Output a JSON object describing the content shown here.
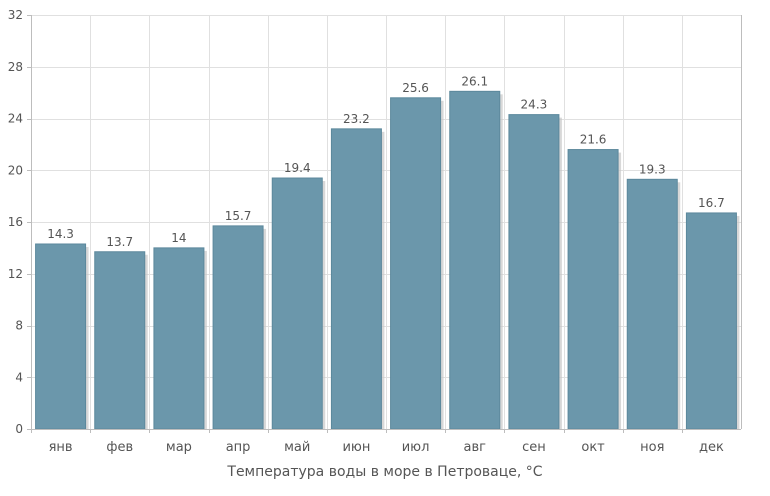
{
  "chart_data": {
    "type": "bar",
    "categories": [
      "янв",
      "фев",
      "мар",
      "апр",
      "май",
      "июн",
      "июл",
      "авг",
      "сен",
      "окт",
      "ноя",
      "дек"
    ],
    "values": [
      14.3,
      13.7,
      14,
      15.7,
      19.4,
      23.2,
      25.6,
      26.1,
      24.3,
      21.6,
      19.3,
      16.7
    ],
    "value_labels": [
      "14.3",
      "13.7",
      "14",
      "15.7",
      "19.4",
      "23.2",
      "25.6",
      "26.1",
      "24.3",
      "21.6",
      "19.3",
      "16.7"
    ],
    "xlabel": "Температура воды в море в Петроваце, °С",
    "ylabel": "",
    "ylim": [
      0,
      32
    ],
    "yticks": [
      0,
      4,
      8,
      12,
      16,
      20,
      24,
      28,
      32
    ],
    "grid": true,
    "colors": {
      "bar": "#6b97ab",
      "bar_edge": "#5c889c",
      "shadow": "#c8c8c8",
      "grid": "#e0e0e0",
      "axis": "#bdbdbd",
      "label": "#555555"
    }
  }
}
